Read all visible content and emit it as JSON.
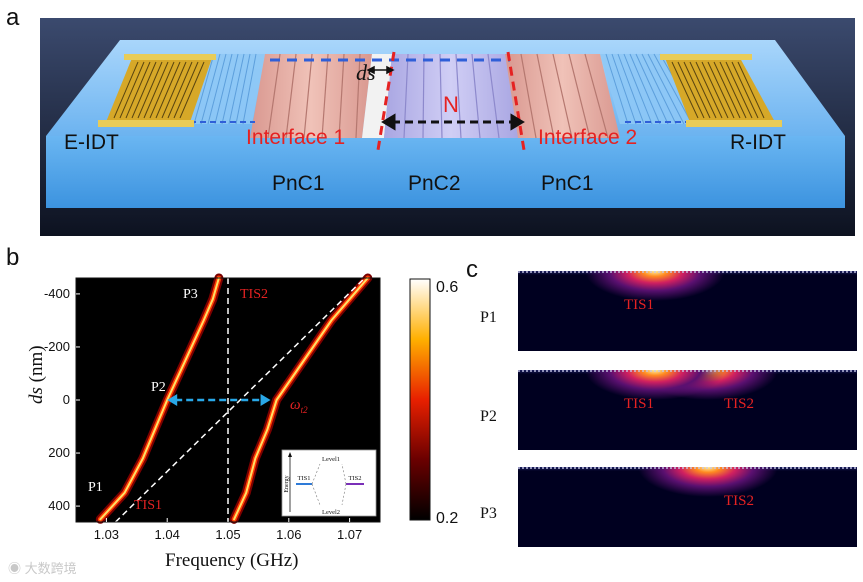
{
  "panel_a": {
    "letter": "a",
    "e_idt": "E-IDT",
    "r_idt": "R-IDT",
    "interface1": "Interface 1",
    "interface2": "Interface 2",
    "ds": "ds",
    "n": "N",
    "pnc1_left": "PnC1",
    "pnc2": "PnC2",
    "pnc1_right": "PnC1",
    "colors": {
      "substrate": "#6fb6f0",
      "pnc1": "#e8aaa0",
      "pnc2": "#b9b6e8",
      "idt": "#d8b030",
      "interface": "#e02020",
      "background": "#1c2236"
    }
  },
  "panel_b": {
    "letter": "b",
    "ylabel_italic": "ds",
    "ylabel_unit": " (nm)",
    "xlabel": "Frequency (GHz)",
    "p1": "P1",
    "p2": "P2",
    "p3": "P3",
    "tis1": "TIS1",
    "tis2": "TIS2",
    "omega": "ω",
    "omega_sub": "t2",
    "colorbar_max": "0.6",
    "colorbar_min": "0.2",
    "inset": {
      "ylabel": "Energy",
      "level1": "Level1",
      "level2": "Level2",
      "tis1": "TIS1",
      "tis2": "TIS2"
    }
  },
  "panel_c": {
    "letter": "c",
    "rows": [
      {
        "label": "P1",
        "tags": [
          "TIS1"
        ]
      },
      {
        "label": "P2",
        "tags": [
          "TIS1",
          "TIS2"
        ]
      },
      {
        "label": "P3",
        "tags": [
          "TIS2"
        ]
      }
    ]
  },
  "watermark": "大数跨境",
  "chart_data": {
    "type": "heatmap",
    "x_ticks": [
      "1.03",
      "1.04",
      "1.05",
      "1.06",
      "1.07"
    ],
    "y_ticks": [
      "-400",
      "-200",
      "0",
      "200",
      "400"
    ],
    "xlim": [
      1.025,
      1.075
    ],
    "ylim": [
      -460,
      460
    ],
    "y_inverted": true,
    "colorbar_range": [
      0.2,
      0.6
    ],
    "vertical_dashed_line_x": 1.05,
    "branches": [
      {
        "name": "left",
        "points": [
          [
            1.029,
            450
          ],
          [
            1.033,
            350
          ],
          [
            1.036,
            220
          ],
          [
            1.038,
            110
          ],
          [
            1.04,
            0
          ],
          [
            1.042,
            -100
          ],
          [
            1.044,
            -200
          ],
          [
            1.046,
            -300
          ],
          [
            1.0475,
            -380
          ],
          [
            1.0485,
            -460
          ]
        ]
      },
      {
        "name": "right",
        "points": [
          [
            1.051,
            450
          ],
          [
            1.053,
            350
          ],
          [
            1.0545,
            220
          ],
          [
            1.0565,
            110
          ],
          [
            1.058,
            0
          ],
          [
            1.061,
            -100
          ],
          [
            1.064,
            -200
          ],
          [
            1.067,
            -300
          ],
          [
            1.07,
            -380
          ],
          [
            1.073,
            -460
          ]
        ]
      }
    ],
    "diagonal_dashed": [
      [
        1.0315,
        460
      ],
      [
        1.0725,
        -460
      ]
    ],
    "arrow_y": 0,
    "arrow_x": [
      1.04,
      1.057
    ]
  }
}
